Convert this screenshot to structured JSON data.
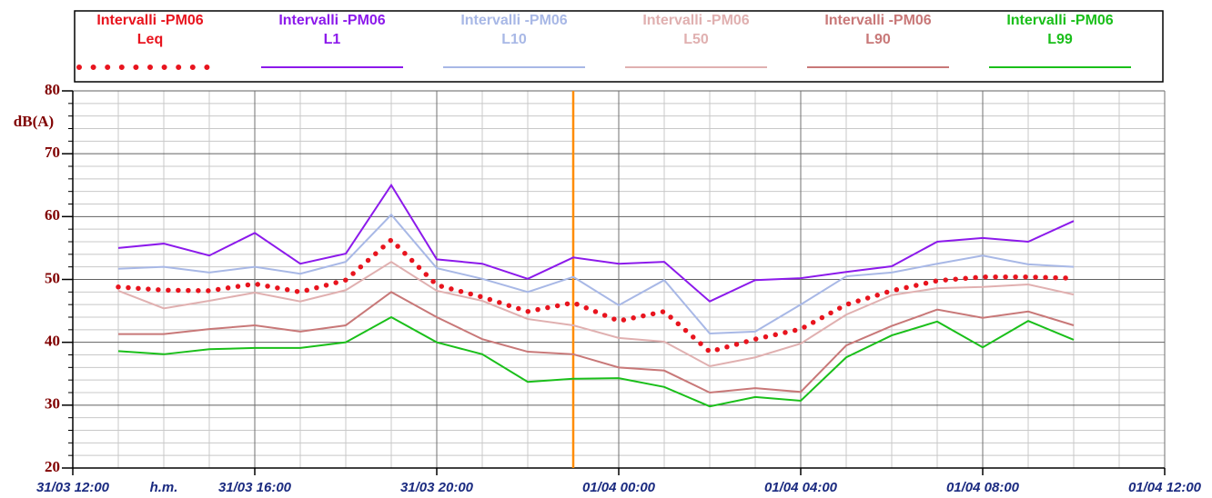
{
  "chart_data": {
    "type": "line",
    "y_label": "dB(A)",
    "x_label": "h.m.",
    "xlim": [
      0,
      24
    ],
    "xticks": [
      {
        "value": 0,
        "label": "31/03 12:00"
      },
      {
        "value": 4,
        "label": "31/03 16:00"
      },
      {
        "value": 8,
        "label": "31/03 20:00"
      },
      {
        "value": 12,
        "label": "01/04 00:00"
      },
      {
        "value": 16,
        "label": "01/04 04:00"
      },
      {
        "value": 20,
        "label": "01/04 08:00"
      },
      {
        "value": 24,
        "label": "01/04 12:00"
      }
    ],
    "xgrid_minor": [
      1,
      2,
      3,
      5,
      6,
      7,
      9,
      10,
      11,
      13,
      14,
      15,
      17,
      18,
      19,
      21,
      22,
      23
    ],
    "ylim": [
      20,
      80
    ],
    "yticks": [
      20,
      30,
      40,
      50,
      60,
      70,
      80
    ],
    "ygrid_minor": [
      22,
      24,
      26,
      28,
      32,
      34,
      36,
      38,
      42,
      44,
      46,
      48,
      52,
      54,
      56,
      58,
      62,
      64,
      66,
      68,
      72,
      74,
      76,
      78
    ],
    "grid": true,
    "marker_x": 11,
    "marker_color": "#ff8c00",
    "x": [
      1,
      2,
      3,
      4,
      5,
      6,
      7,
      8,
      9,
      10,
      11,
      12,
      13,
      14,
      15,
      16,
      17,
      18,
      19,
      20,
      21,
      22
    ],
    "series": [
      {
        "source": "Intervalli -PM06",
        "name": "Leq",
        "color": "#e8141e",
        "style": "dotted",
        "values": [
          48.8,
          48.3,
          48.2,
          49.3,
          48.0,
          49.9,
          56.3,
          49.1,
          47.2,
          44.9,
          46.3,
          43.4,
          44.9,
          38.5,
          40.5,
          42.1,
          46.0,
          48.2,
          49.8,
          50.4,
          50.4,
          50.2
        ]
      },
      {
        "source": "Intervalli -PM06",
        "name": "L1",
        "color": "#8c1aeb",
        "style": "solid",
        "values": [
          55.0,
          55.7,
          53.8,
          57.4,
          52.5,
          54.1,
          65.0,
          53.2,
          52.5,
          50.1,
          53.5,
          52.5,
          52.8,
          46.5,
          49.9,
          50.2,
          51.2,
          52.1,
          56.0,
          56.6,
          56.0,
          59.3
        ]
      },
      {
        "source": "Intervalli -PM06",
        "name": "L10",
        "color": "#a8b8e6",
        "style": "solid",
        "values": [
          51.7,
          52.0,
          51.1,
          52.0,
          50.9,
          52.8,
          60.3,
          51.8,
          50.1,
          48.0,
          50.4,
          45.9,
          49.9,
          41.4,
          41.7,
          46.0,
          50.5,
          51.1,
          52.5,
          53.8,
          52.4,
          52.0
        ]
      },
      {
        "source": "Intervalli -PM06",
        "name": "L50",
        "color": "#e0b0b0",
        "style": "solid",
        "values": [
          48.2,
          45.4,
          46.6,
          47.9,
          46.5,
          48.3,
          52.8,
          48.2,
          46.6,
          43.7,
          42.7,
          40.7,
          40.1,
          36.2,
          37.6,
          39.8,
          44.4,
          47.5,
          48.6,
          48.8,
          49.2,
          47.6
        ]
      },
      {
        "source": "Intervalli -PM06",
        "name": "L90",
        "color": "#c87878",
        "style": "solid",
        "values": [
          41.3,
          41.3,
          42.1,
          42.7,
          41.7,
          42.7,
          48.0,
          44.0,
          40.5,
          38.5,
          38.1,
          36.0,
          35.5,
          32.0,
          32.7,
          32.1,
          39.5,
          42.6,
          45.2,
          43.9,
          44.9,
          42.7
        ]
      },
      {
        "source": "Intervalli -PM06",
        "name": "L99",
        "color": "#1abf1a",
        "style": "solid",
        "values": [
          38.6,
          38.1,
          38.9,
          39.1,
          39.1,
          40.0,
          44.0,
          40.0,
          38.1,
          33.7,
          34.2,
          34.3,
          32.9,
          29.8,
          31.3,
          30.7,
          37.6,
          41.1,
          43.3,
          39.2,
          43.4,
          40.4
        ]
      }
    ]
  }
}
